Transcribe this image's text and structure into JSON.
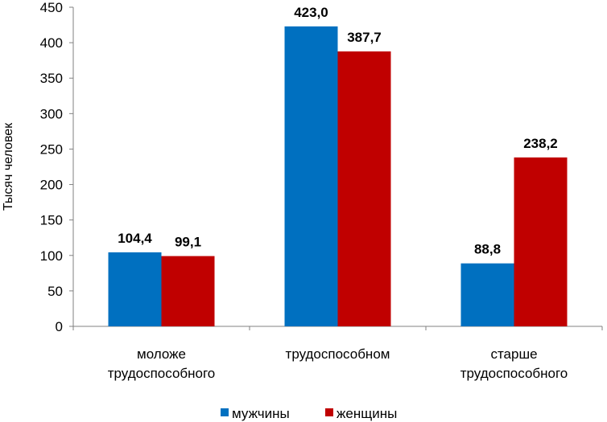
{
  "chart_data": {
    "type": "bar",
    "ylabel": "Тысяч человек",
    "ylim": [
      0,
      450
    ],
    "yticks": [
      0,
      50,
      100,
      150,
      200,
      250,
      300,
      350,
      400,
      450
    ],
    "categories": [
      [
        "моложе",
        "трудоспособного"
      ],
      [
        "трудоспособном"
      ],
      [
        "старше",
        "трудоспособного"
      ]
    ],
    "series": [
      {
        "name": "мужчины",
        "values": [
          104.4,
          423.0,
          88.8
        ],
        "labels": [
          "104,4",
          "423,0",
          "88,8"
        ],
        "color": "#0070C0"
      },
      {
        "name": "женщины",
        "values": [
          99.1,
          387.7,
          238.2
        ],
        "labels": [
          "99,1",
          "387,7",
          "238,2"
        ],
        "color": "#C00000"
      }
    ],
    "legend_position": "bottom",
    "grid": false
  }
}
